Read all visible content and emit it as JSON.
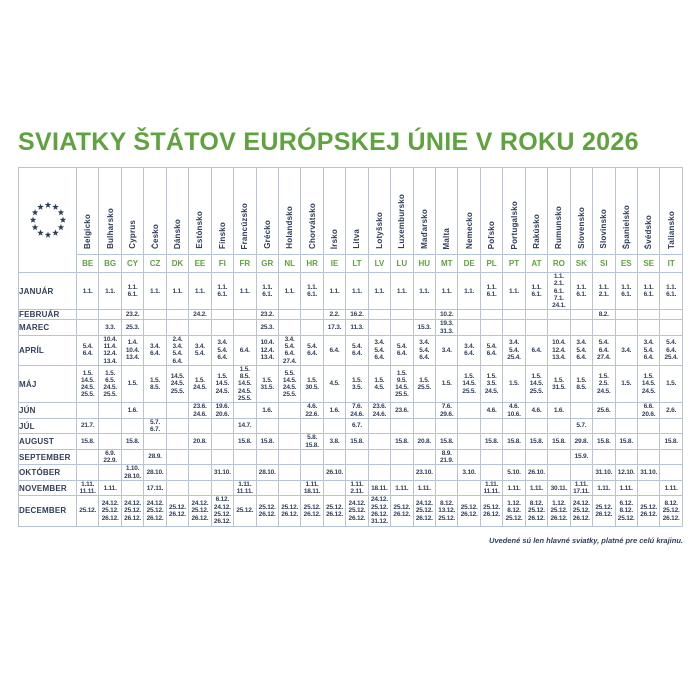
{
  "title": "SVIATKY ŠTÁTOV EURÓPSKEJ ÚNIE V ROKU 2026",
  "footer_note": "Uvedené sú len hlavné sviatky, platné pre celú krajinu.",
  "colors": {
    "accent_green": "#5ea33e",
    "text_navy": "#2f3e5c",
    "grid_line": "#b7c3d6"
  },
  "icons": {
    "eu_stars": "eu-stars-icon"
  },
  "table": {
    "countries": [
      {
        "name": "Belgicko",
        "code": "BE"
      },
      {
        "name": "Bulharsko",
        "code": "BG"
      },
      {
        "name": "Cyprus",
        "code": "CY"
      },
      {
        "name": "Česko",
        "code": "CZ"
      },
      {
        "name": "Dánsko",
        "code": "DK"
      },
      {
        "name": "Estónsko",
        "code": "EE"
      },
      {
        "name": "Fínsko",
        "code": "FI"
      },
      {
        "name": "Francúzsko",
        "code": "FR"
      },
      {
        "name": "Grécko",
        "code": "GR"
      },
      {
        "name": "Holandsko",
        "code": "NL"
      },
      {
        "name": "Chorvátsko",
        "code": "HR"
      },
      {
        "name": "Írsko",
        "code": "IE"
      },
      {
        "name": "Litva",
        "code": "LT"
      },
      {
        "name": "Lotyšsko",
        "code": "LV"
      },
      {
        "name": "Luxembursko",
        "code": "LU"
      },
      {
        "name": "Maďarsko",
        "code": "HU"
      },
      {
        "name": "Malta",
        "code": "MT"
      },
      {
        "name": "Nemecko",
        "code": "DE"
      },
      {
        "name": "Poľsko",
        "code": "PL"
      },
      {
        "name": "Portugalsko",
        "code": "PT"
      },
      {
        "name": "Rakúsko",
        "code": "AT"
      },
      {
        "name": "Rumunsko",
        "code": "RO"
      },
      {
        "name": "Slovensko",
        "code": "SK"
      },
      {
        "name": "Slovinsko",
        "code": "SI"
      },
      {
        "name": "Španielsko",
        "code": "ES"
      },
      {
        "name": "Švédsko",
        "code": "SE"
      },
      {
        "name": "Taliansko",
        "code": "IT"
      }
    ],
    "months": [
      {
        "label": "JANUÁR",
        "cells": [
          [
            "1.1."
          ],
          [
            "1.1."
          ],
          [
            "1.1.",
            "6.1."
          ],
          [
            "1.1."
          ],
          [
            "1.1."
          ],
          [
            "1.1."
          ],
          [
            "1.1.",
            "6.1."
          ],
          [
            "1.1."
          ],
          [
            "1.1.",
            "6.1."
          ],
          [
            "1.1."
          ],
          [
            "1.1.",
            "6.1."
          ],
          [
            "1.1."
          ],
          [
            "1.1."
          ],
          [
            "1.1."
          ],
          [
            "1.1."
          ],
          [
            "1.1."
          ],
          [
            "1.1."
          ],
          [
            "1.1."
          ],
          [
            "1.1.",
            "6.1."
          ],
          [
            "1.1."
          ],
          [
            "1.1.",
            "6.1."
          ],
          [
            "1.1.",
            "2.1.",
            "6.1.",
            "7.1.",
            "24.1."
          ],
          [
            "1.1.",
            "6.1."
          ],
          [
            "1.1.",
            "2.1."
          ],
          [
            "1.1.",
            "6.1."
          ],
          [
            "1.1.",
            "6.1."
          ],
          [
            "1.1.",
            "6.1."
          ]
        ]
      },
      {
        "label": "FEBRUÁR",
        "cells": [
          [],
          [],
          [
            "23.2."
          ],
          [],
          [],
          [
            "24.2."
          ],
          [],
          [],
          [
            "23.2."
          ],
          [],
          [],
          [
            "2.2."
          ],
          [
            "16.2."
          ],
          [],
          [],
          [],
          [
            "10.2."
          ],
          [],
          [],
          [],
          [],
          [],
          [],
          [
            "8.2."
          ],
          [],
          [],
          []
        ]
      },
      {
        "label": "MAREC",
        "cells": [
          [],
          [
            "3.3."
          ],
          [
            "25.3."
          ],
          [],
          [],
          [],
          [],
          [],
          [
            "25.3."
          ],
          [],
          [],
          [
            "17.3."
          ],
          [
            "11.3."
          ],
          [],
          [],
          [
            "15.3."
          ],
          [
            "19.3.",
            "31.3."
          ],
          [],
          [],
          [],
          [],
          [],
          [],
          [],
          [],
          [],
          []
        ]
      },
      {
        "label": "APRÍL",
        "cells": [
          [
            "5.4.",
            "6.4."
          ],
          [
            "10.4.",
            "11.4.",
            "12.4.",
            "13.4."
          ],
          [
            "1.4.",
            "10.4.",
            "13.4."
          ],
          [
            "3.4.",
            "6.4."
          ],
          [
            "2.4.",
            "3.4.",
            "5.4.",
            "6.4."
          ],
          [
            "3.4.",
            "5.4."
          ],
          [
            "3.4.",
            "5.4.",
            "6.4."
          ],
          [
            "6.4."
          ],
          [
            "10.4.",
            "12.4.",
            "13.4."
          ],
          [
            "3.4.",
            "5.4.",
            "6.4.",
            "27.4."
          ],
          [
            "5.4.",
            "6.4."
          ],
          [
            "6.4."
          ],
          [
            "5.4.",
            "6.4."
          ],
          [
            "3.4.",
            "5.4.",
            "6.4."
          ],
          [
            "5.4.",
            "6.4."
          ],
          [
            "3.4.",
            "5.4.",
            "6.4."
          ],
          [
            "3.4."
          ],
          [
            "3.4.",
            "6.4."
          ],
          [
            "5.4.",
            "6.4."
          ],
          [
            "3.4.",
            "5.4.",
            "25.4."
          ],
          [
            "6.4."
          ],
          [
            "10.4.",
            "12.4.",
            "13.4."
          ],
          [
            "3.4.",
            "5.4.",
            "6.4."
          ],
          [
            "5.4.",
            "6.4.",
            "27.4."
          ],
          [
            "3.4."
          ],
          [
            "3.4.",
            "5.4.",
            "6.4."
          ],
          [
            "5.4.",
            "6.4.",
            "25.4."
          ]
        ]
      },
      {
        "label": "MÁJ",
        "cells": [
          [
            "1.5.",
            "14.5.",
            "24.5.",
            "25.5."
          ],
          [
            "1.5.",
            "6.5.",
            "24.5.",
            "25.5."
          ],
          [
            "1.5."
          ],
          [
            "1.5.",
            "8.5."
          ],
          [
            "14.5.",
            "24.5.",
            "25.5."
          ],
          [
            "1.5.",
            "24.5."
          ],
          [
            "1.5.",
            "14.5.",
            "24.5."
          ],
          [
            "1.5.",
            "8.5.",
            "14.5.",
            "24.5.",
            "25.5."
          ],
          [
            "1.5.",
            "31.5."
          ],
          [
            "5.5.",
            "14.5.",
            "24.5.",
            "25.5."
          ],
          [
            "1.5.",
            "30.5."
          ],
          [
            "4.5."
          ],
          [
            "1.5.",
            "3.5."
          ],
          [
            "1.5.",
            "4.5."
          ],
          [
            "1.5.",
            "9.5.",
            "14.5.",
            "25.5."
          ],
          [
            "1.5.",
            "25.5."
          ],
          [
            "1.5."
          ],
          [
            "1.5.",
            "14.5.",
            "25.5."
          ],
          [
            "1.5.",
            "3.5.",
            "24.5."
          ],
          [
            "1.5."
          ],
          [
            "1.5.",
            "14.5.",
            "25.5."
          ],
          [
            "1.5.",
            "31.5."
          ],
          [
            "1.5.",
            "8.5."
          ],
          [
            "1.5.",
            "2.5.",
            "24.5."
          ],
          [
            "1.5."
          ],
          [
            "1.5.",
            "14.5.",
            "24.5."
          ],
          [
            "1.5."
          ]
        ]
      },
      {
        "label": "JÚN",
        "cells": [
          [],
          [],
          [
            "1.6."
          ],
          [],
          [],
          [
            "23.6.",
            "24.6."
          ],
          [
            "19.6.",
            "20.6."
          ],
          [],
          [
            "1.6."
          ],
          [],
          [
            "4.6.",
            "22.6."
          ],
          [
            "1.6."
          ],
          [
            "7.6.",
            "24.6."
          ],
          [
            "23.6.",
            "24.6."
          ],
          [
            "23.6."
          ],
          [],
          [
            "7.6.",
            "29.6."
          ],
          [],
          [
            "4.6."
          ],
          [
            "4.6.",
            "10.6."
          ],
          [
            "4.6."
          ],
          [
            "1.6."
          ],
          [],
          [
            "25.6."
          ],
          [],
          [
            "6.6.",
            "20.6."
          ],
          [
            "2.6."
          ]
        ]
      },
      {
        "label": "JÚL",
        "cells": [
          [
            "21.7."
          ],
          [],
          [],
          [
            "5.7.",
            "6.7."
          ],
          [],
          [],
          [],
          [
            "14.7."
          ],
          [],
          [],
          [],
          [],
          [
            "6.7."
          ],
          [],
          [],
          [],
          [],
          [],
          [],
          [],
          [],
          [],
          [
            "5.7."
          ],
          [],
          [],
          [],
          []
        ]
      },
      {
        "label": "AUGUST",
        "cells": [
          [
            "15.8."
          ],
          [],
          [
            "15.8."
          ],
          [],
          [],
          [
            "20.8."
          ],
          [],
          [
            "15.8."
          ],
          [
            "15.8."
          ],
          [],
          [
            "5.8.",
            "15.8."
          ],
          [
            "3.8."
          ],
          [
            "15.8."
          ],
          [],
          [
            "15.8."
          ],
          [
            "20.8."
          ],
          [
            "15.8."
          ],
          [],
          [
            "15.8."
          ],
          [
            "15.8."
          ],
          [
            "15.8."
          ],
          [
            "15.8."
          ],
          [
            "29.8."
          ],
          [
            "15.8."
          ],
          [
            "15.8."
          ],
          [],
          [
            "15.8."
          ]
        ]
      },
      {
        "label": "SEPTEMBER",
        "cells": [
          [],
          [
            "6.9.",
            "22.9."
          ],
          [],
          [
            "28.9."
          ],
          [],
          [],
          [],
          [],
          [],
          [],
          [],
          [],
          [],
          [],
          [],
          [],
          [
            "8.9.",
            "21.9."
          ],
          [],
          [],
          [],
          [],
          [],
          [
            "15.9."
          ],
          [],
          [],
          [],
          []
        ]
      },
      {
        "label": "OKTÓBER",
        "cells": [
          [],
          [],
          [
            "1.10.",
            "28.10."
          ],
          [
            "28.10."
          ],
          [],
          [],
          [
            "31.10."
          ],
          [],
          [
            "28.10."
          ],
          [],
          [],
          [
            "26.10."
          ],
          [],
          [],
          [],
          [
            "23.10."
          ],
          [],
          [
            "3.10."
          ],
          [],
          [
            "5.10."
          ],
          [
            "26.10."
          ],
          [],
          [],
          [
            "31.10."
          ],
          [
            "12.10."
          ],
          [
            "31.10."
          ],
          []
        ]
      },
      {
        "label": "NOVEMBER",
        "cells": [
          [
            "1.11.",
            "11.11."
          ],
          [
            "1.11."
          ],
          [],
          [
            "17.11."
          ],
          [],
          [],
          [],
          [
            "1.11.",
            "11.11."
          ],
          [],
          [],
          [
            "1.11.",
            "18.11."
          ],
          [],
          [
            "1.11.",
            "2.11."
          ],
          [
            "18.11."
          ],
          [
            "1.11."
          ],
          [
            "1.11."
          ],
          [],
          [],
          [
            "1.11.",
            "11.11."
          ],
          [
            "1.11."
          ],
          [
            "1.11."
          ],
          [
            "30.11."
          ],
          [
            "1.11.",
            "17.11."
          ],
          [
            "1.11."
          ],
          [
            "1.11."
          ],
          [],
          [
            "1.11."
          ]
        ]
      },
      {
        "label": "DECEMBER",
        "cells": [
          [
            "25.12."
          ],
          [
            "24.12.",
            "25.12.",
            "26.12."
          ],
          [
            "24.12.",
            "25.12.",
            "26.12."
          ],
          [
            "24.12.",
            "25.12.",
            "26.12."
          ],
          [
            "25.12.",
            "26.12."
          ],
          [
            "24.12.",
            "25.12.",
            "26.12."
          ],
          [
            "6.12.",
            "24.12.",
            "25.12.",
            "26.12."
          ],
          [
            "25.12."
          ],
          [
            "25.12.",
            "26.12."
          ],
          [
            "25.12.",
            "26.12."
          ],
          [
            "25.12.",
            "26.12."
          ],
          [
            "25.12.",
            "26.12."
          ],
          [
            "24.12.",
            "25.12.",
            "26.12."
          ],
          [
            "24.12.",
            "25.12.",
            "26.12.",
            "31.12."
          ],
          [
            "25.12.",
            "26.12."
          ],
          [
            "24.12.",
            "25.12.",
            "26.12."
          ],
          [
            "8.12.",
            "13.12.",
            "25.12."
          ],
          [
            "25.12.",
            "26.12."
          ],
          [
            "25.12.",
            "26.12."
          ],
          [
            "1.12.",
            "8.12.",
            "25.12."
          ],
          [
            "8.12.",
            "25.12.",
            "26.12."
          ],
          [
            "1.12.",
            "25.12.",
            "26.12."
          ],
          [
            "24.12.",
            "25.12.",
            "26.12."
          ],
          [
            "25.12.",
            "26.12."
          ],
          [
            "6.12.",
            "8.12.",
            "25.12."
          ],
          [
            "25.12.",
            "26.12."
          ],
          [
            "8.12.",
            "25.12.",
            "26.12."
          ]
        ]
      }
    ]
  }
}
